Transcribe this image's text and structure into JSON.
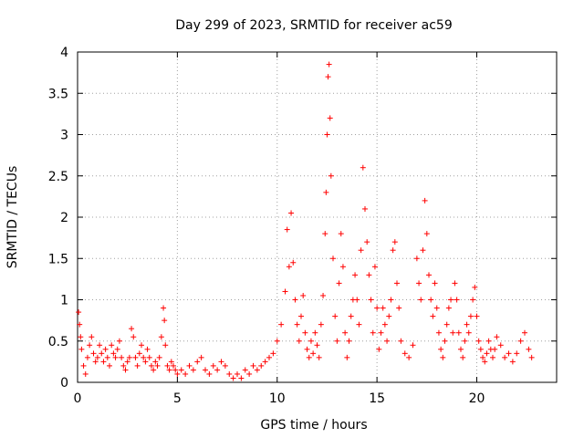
{
  "chart_data": {
    "type": "scatter",
    "title": "Day 299 of 2023, SRMTID for receiver ac59",
    "xlabel": "GPS time / hours",
    "ylabel": "SRMTID / TECUs",
    "xlim": [
      0,
      24
    ],
    "ylim": [
      0,
      4
    ],
    "xticks": [
      0,
      5,
      10,
      15,
      20
    ],
    "xtick_labels": [
      "0",
      "5",
      "10",
      "15",
      "20"
    ],
    "yticks": [
      0,
      0.5,
      1,
      1.5,
      2,
      2.5,
      3,
      3.5,
      4
    ],
    "ytick_labels": [
      "0",
      "0.5",
      "1",
      "1.5",
      "2",
      "2.5",
      "3",
      "3.5",
      "4"
    ],
    "grid": true,
    "marker": "+",
    "marker_color": "#ff0000",
    "series": [
      {
        "name": "SRMTID",
        "points": [
          [
            0.05,
            0.85
          ],
          [
            0.1,
            0.7
          ],
          [
            0.15,
            0.55
          ],
          [
            0.2,
            0.4
          ],
          [
            0.3,
            0.2
          ],
          [
            0.4,
            0.1
          ],
          [
            0.5,
            0.3
          ],
          [
            0.6,
            0.45
          ],
          [
            0.7,
            0.55
          ],
          [
            0.8,
            0.35
          ],
          [
            0.9,
            0.25
          ],
          [
            1.0,
            0.3
          ],
          [
            1.1,
            0.45
          ],
          [
            1.2,
            0.35
          ],
          [
            1.3,
            0.25
          ],
          [
            1.4,
            0.4
          ],
          [
            1.5,
            0.3
          ],
          [
            1.6,
            0.2
          ],
          [
            1.7,
            0.45
          ],
          [
            1.8,
            0.35
          ],
          [
            1.9,
            0.3
          ],
          [
            2.0,
            0.4
          ],
          [
            2.1,
            0.5
          ],
          [
            2.2,
            0.3
          ],
          [
            2.3,
            0.2
          ],
          [
            2.4,
            0.15
          ],
          [
            2.5,
            0.25
          ],
          [
            2.6,
            0.3
          ],
          [
            2.7,
            0.65
          ],
          [
            2.8,
            0.55
          ],
          [
            2.9,
            0.3
          ],
          [
            3.0,
            0.2
          ],
          [
            3.1,
            0.35
          ],
          [
            3.2,
            0.45
          ],
          [
            3.3,
            0.3
          ],
          [
            3.4,
            0.25
          ],
          [
            3.5,
            0.4
          ],
          [
            3.6,
            0.3
          ],
          [
            3.7,
            0.2
          ],
          [
            3.8,
            0.15
          ],
          [
            3.9,
            0.25
          ],
          [
            4.0,
            0.2
          ],
          [
            4.1,
            0.3
          ],
          [
            4.2,
            0.55
          ],
          [
            4.3,
            0.9
          ],
          [
            4.35,
            0.75
          ],
          [
            4.4,
            0.45
          ],
          [
            4.5,
            0.2
          ],
          [
            4.6,
            0.15
          ],
          [
            4.7,
            0.25
          ],
          [
            4.8,
            0.2
          ],
          [
            4.9,
            0.15
          ],
          [
            5.0,
            0.1
          ],
          [
            5.2,
            0.15
          ],
          [
            5.4,
            0.1
          ],
          [
            5.6,
            0.2
          ],
          [
            5.8,
            0.15
          ],
          [
            6.0,
            0.25
          ],
          [
            6.2,
            0.3
          ],
          [
            6.4,
            0.15
          ],
          [
            6.6,
            0.1
          ],
          [
            6.8,
            0.2
          ],
          [
            7.0,
            0.15
          ],
          [
            7.2,
            0.25
          ],
          [
            7.4,
            0.2
          ],
          [
            7.6,
            0.1
          ],
          [
            7.8,
            0.05
          ],
          [
            8.0,
            0.1
          ],
          [
            8.2,
            0.05
          ],
          [
            8.4,
            0.15
          ],
          [
            8.6,
            0.1
          ],
          [
            8.8,
            0.2
          ],
          [
            9.0,
            0.15
          ],
          [
            9.2,
            0.2
          ],
          [
            9.4,
            0.25
          ],
          [
            9.6,
            0.3
          ],
          [
            9.8,
            0.35
          ],
          [
            10.0,
            0.5
          ],
          [
            10.2,
            0.7
          ],
          [
            10.4,
            1.1
          ],
          [
            10.5,
            1.85
          ],
          [
            10.6,
            1.4
          ],
          [
            10.7,
            2.05
          ],
          [
            10.8,
            1.45
          ],
          [
            10.9,
            1.0
          ],
          [
            11.0,
            0.7
          ],
          [
            11.1,
            0.5
          ],
          [
            11.2,
            0.8
          ],
          [
            11.3,
            1.05
          ],
          [
            11.4,
            0.6
          ],
          [
            11.5,
            0.4
          ],
          [
            11.6,
            0.3
          ],
          [
            11.7,
            0.5
          ],
          [
            11.8,
            0.35
          ],
          [
            11.9,
            0.6
          ],
          [
            12.0,
            0.45
          ],
          [
            12.1,
            0.3
          ],
          [
            12.2,
            0.7
          ],
          [
            12.3,
            1.05
          ],
          [
            12.4,
            1.8
          ],
          [
            12.45,
            2.3
          ],
          [
            12.5,
            3.0
          ],
          [
            12.55,
            3.7
          ],
          [
            12.6,
            3.85
          ],
          [
            12.65,
            3.2
          ],
          [
            12.7,
            2.5
          ],
          [
            12.8,
            1.5
          ],
          [
            12.9,
            0.8
          ],
          [
            13.0,
            0.5
          ],
          [
            13.1,
            1.2
          ],
          [
            13.2,
            1.8
          ],
          [
            13.3,
            1.4
          ],
          [
            13.4,
            0.6
          ],
          [
            13.5,
            0.3
          ],
          [
            13.6,
            0.5
          ],
          [
            13.7,
            0.8
          ],
          [
            13.8,
            1.0
          ],
          [
            13.9,
            1.3
          ],
          [
            14.0,
            1.0
          ],
          [
            14.1,
            0.7
          ],
          [
            14.2,
            1.6
          ],
          [
            14.3,
            2.6
          ],
          [
            14.4,
            2.1
          ],
          [
            14.5,
            1.7
          ],
          [
            14.6,
            1.3
          ],
          [
            14.7,
            1.0
          ],
          [
            14.8,
            0.6
          ],
          [
            14.9,
            1.4
          ],
          [
            15.0,
            0.9
          ],
          [
            15.1,
            0.4
          ],
          [
            15.2,
            0.6
          ],
          [
            15.3,
            0.9
          ],
          [
            15.4,
            0.7
          ],
          [
            15.5,
            0.5
          ],
          [
            15.6,
            0.8
          ],
          [
            15.7,
            1.0
          ],
          [
            15.8,
            1.6
          ],
          [
            15.9,
            1.7
          ],
          [
            16.0,
            1.2
          ],
          [
            16.1,
            0.9
          ],
          [
            16.2,
            0.5
          ],
          [
            16.4,
            0.35
          ],
          [
            16.6,
            0.3
          ],
          [
            16.8,
            0.45
          ],
          [
            17.0,
            1.5
          ],
          [
            17.1,
            1.2
          ],
          [
            17.2,
            1.0
          ],
          [
            17.3,
            1.6
          ],
          [
            17.4,
            2.2
          ],
          [
            17.5,
            1.8
          ],
          [
            17.6,
            1.3
          ],
          [
            17.7,
            1.0
          ],
          [
            17.8,
            0.8
          ],
          [
            17.9,
            1.2
          ],
          [
            18.0,
            0.9
          ],
          [
            18.1,
            0.6
          ],
          [
            18.2,
            0.4
          ],
          [
            18.3,
            0.3
          ],
          [
            18.4,
            0.5
          ],
          [
            18.5,
            0.7
          ],
          [
            18.6,
            0.9
          ],
          [
            18.7,
            1.0
          ],
          [
            18.8,
            0.6
          ],
          [
            18.9,
            1.2
          ],
          [
            19.0,
            1.0
          ],
          [
            19.1,
            0.6
          ],
          [
            19.2,
            0.4
          ],
          [
            19.3,
            0.3
          ],
          [
            19.4,
            0.5
          ],
          [
            19.5,
            0.7
          ],
          [
            19.6,
            0.6
          ],
          [
            19.7,
            0.8
          ],
          [
            19.8,
            1.0
          ],
          [
            19.9,
            1.15
          ],
          [
            20.0,
            0.8
          ],
          [
            20.1,
            0.5
          ],
          [
            20.2,
            0.4
          ],
          [
            20.3,
            0.3
          ],
          [
            20.4,
            0.25
          ],
          [
            20.5,
            0.35
          ],
          [
            20.6,
            0.5
          ],
          [
            20.7,
            0.4
          ],
          [
            20.8,
            0.3
          ],
          [
            20.9,
            0.4
          ],
          [
            21.0,
            0.55
          ],
          [
            21.2,
            0.45
          ],
          [
            21.4,
            0.3
          ],
          [
            21.6,
            0.35
          ],
          [
            21.8,
            0.25
          ],
          [
            22.0,
            0.35
          ],
          [
            22.2,
            0.5
          ],
          [
            22.4,
            0.6
          ],
          [
            22.6,
            0.4
          ],
          [
            22.75,
            0.3
          ]
        ]
      }
    ]
  }
}
